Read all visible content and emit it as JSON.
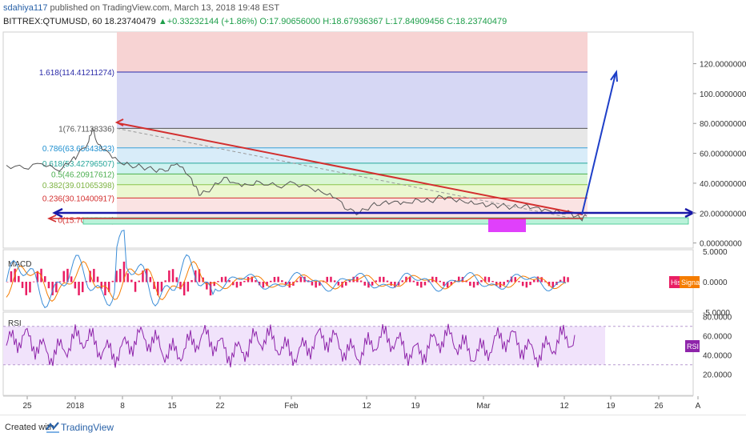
{
  "header": {
    "user": "sdahiya117",
    "published": "published on TradingView.com, March 13, 2018 19:48 EST",
    "symbol": "BITTREX:QTUMUSD, 60",
    "last": "18.23740479",
    "change": "+0.33232144 (+1.86%)",
    "open": "O:17.90656000",
    "high": "H:18.67936367",
    "low": "L:17.84909456",
    "close": "C:18.23740479"
  },
  "colors": {
    "up": "#1e9e4a",
    "price_line": "#555555",
    "trend_red": "#d32f2f",
    "support_blue": "#1a1aa8",
    "projection_blue": "#1e3fc8",
    "macd_line": "#3c8ed8",
    "signal_line": "#f57c00",
    "histogram": "#e91e63",
    "rsi_line": "#8e24aa",
    "rsi_band": "#f1e3fb",
    "magenta_box": "#e040fb",
    "green_box": "#b9f2d9"
  },
  "chart_data": [
    {
      "type": "line",
      "panel": "price",
      "ylim": [
        -5,
        130
      ],
      "yticks": [
        "120.00000000",
        "100.00000000",
        "80.00000000",
        "60.00000000",
        "40.00000000",
        "20.00000000",
        "0.00000000"
      ],
      "xticks": [
        "25",
        "2018",
        "8",
        "15",
        "22",
        "Feb",
        "12",
        "19",
        "Mar",
        "12",
        "19",
        "26",
        "A"
      ],
      "fib_levels": [
        {
          "ratio": "1.618",
          "label": "1.618(114.41211274)",
          "value": 114.41211274
        },
        {
          "ratio": "1",
          "label": "1(76.71138336)",
          "value": 76.71138336
        },
        {
          "ratio": "0.786",
          "label": "0.786(63.65643823)",
          "value": 63.65643823
        },
        {
          "ratio": "0.618",
          "label": "0.618(53.42796507)",
          "value": 53.42796507
        },
        {
          "ratio": "0.5",
          "label": "0.5(46.20917612)",
          "value": 46.20917612
        },
        {
          "ratio": "0.382",
          "label": "0.382(39.01065398)",
          "value": 39.01065398
        },
        {
          "ratio": "0.236",
          "label": "0.236(30.10400917)",
          "value": 30.10400917
        },
        {
          "ratio": "0",
          "label": "0(15.70695888)",
          "value": 15.70695888
        }
      ],
      "series": [
        {
          "values": [
            [
              0,
              52
            ],
            [
              1.5,
              50
            ],
            [
              3,
              53
            ],
            [
              4.5,
              48
            ],
            [
              5.5,
              55
            ],
            [
              6,
              58
            ],
            [
              7,
              68
            ],
            [
              7.3,
              76.7
            ],
            [
              7.8,
              66
            ],
            [
              8.5,
              62
            ],
            [
              9.5,
              55
            ],
            [
              10.5,
              52
            ],
            [
              11.5,
              51
            ],
            [
              12.5,
              49
            ],
            [
              13.5,
              48
            ],
            [
              14.5,
              53
            ],
            [
              15.5,
              45
            ],
            [
              16,
              38
            ],
            [
              16.5,
              32
            ],
            [
              17.5,
              37
            ],
            [
              18.5,
              44
            ],
            [
              19.5,
              40
            ],
            [
              20.5,
              39
            ],
            [
              21.5,
              41
            ],
            [
              23,
              38
            ],
            [
              24.5,
              40
            ],
            [
              26,
              36
            ],
            [
              27,
              33
            ],
            [
              28,
              30
            ],
            [
              29,
              22
            ],
            [
              30,
              20
            ],
            [
              31,
              25
            ],
            [
              32,
              27
            ],
            [
              33,
              28
            ],
            [
              34,
              27
            ],
            [
              35,
              29
            ],
            [
              36,
              28
            ],
            [
              37,
              31
            ],
            [
              38,
              29
            ],
            [
              39,
              27
            ],
            [
              40,
              26
            ],
            [
              41,
              25
            ],
            [
              42,
              25
            ],
            [
              43,
              24
            ],
            [
              44,
              25
            ],
            [
              45,
              24
            ],
            [
              46,
              22
            ],
            [
              47,
              21
            ],
            [
              48,
              20
            ],
            [
              48.8,
              16
            ],
            [
              49.3,
              18
            ]
          ]
        }
      ]
    },
    {
      "type": "line",
      "panel": "macd",
      "title": "MACD",
      "ylim": [
        -5,
        5
      ],
      "yticks": [
        "5.0000",
        "0.0000",
        "-5.0000"
      ],
      "legend": [
        "Hist",
        "Signal"
      ]
    },
    {
      "type": "line",
      "panel": "rsi",
      "title": "RSI",
      "ylim": [
        10,
        80
      ],
      "yticks": [
        "80.0000",
        "60.0000",
        "40.0000",
        "20.0000"
      ],
      "bands": [
        30,
        70
      ],
      "legend": [
        "RSI"
      ]
    }
  ]
}
